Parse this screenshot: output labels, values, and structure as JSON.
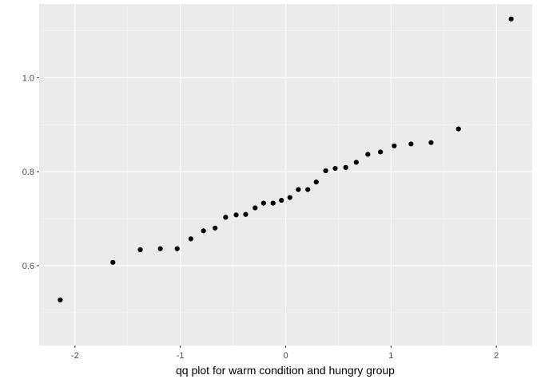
{
  "chart_data": {
    "type": "scatter",
    "title": "",
    "xlabel": "qq plot for warm condition and hungry group",
    "ylabel": "",
    "xlim": [
      -2.34,
      2.34
    ],
    "ylim": [
      0.43,
      1.157
    ],
    "x_ticks": [
      -2,
      -1,
      0,
      1,
      2
    ],
    "x_tick_labels": [
      "-2",
      "-1",
      "0",
      "1",
      "2"
    ],
    "y_ticks": [
      0.6,
      0.8,
      1.0
    ],
    "y_tick_labels": [
      "0.6",
      "0.8",
      "1.0"
    ],
    "grid": true,
    "legend": "none",
    "colors": {
      "panel": "#ebebeb",
      "grid_major": "#ffffff",
      "point": "#000000",
      "tick_text": "#4d4d4d",
      "title_text": "#000000"
    },
    "points": [
      {
        "x": -2.14,
        "y": 0.527
      },
      {
        "x": -1.64,
        "y": 0.607
      },
      {
        "x": -1.38,
        "y": 0.634
      },
      {
        "x": -1.19,
        "y": 0.636
      },
      {
        "x": -1.03,
        "y": 0.636
      },
      {
        "x": -0.9,
        "y": 0.657
      },
      {
        "x": -0.78,
        "y": 0.674
      },
      {
        "x": -0.67,
        "y": 0.68
      },
      {
        "x": -0.57,
        "y": 0.703
      },
      {
        "x": -0.47,
        "y": 0.708
      },
      {
        "x": -0.38,
        "y": 0.709
      },
      {
        "x": -0.29,
        "y": 0.723
      },
      {
        "x": -0.21,
        "y": 0.733
      },
      {
        "x": -0.12,
        "y": 0.733
      },
      {
        "x": -0.04,
        "y": 0.739
      },
      {
        "x": 0.04,
        "y": 0.745
      },
      {
        "x": 0.12,
        "y": 0.762
      },
      {
        "x": 0.21,
        "y": 0.762
      },
      {
        "x": 0.29,
        "y": 0.778
      },
      {
        "x": 0.38,
        "y": 0.802
      },
      {
        "x": 0.47,
        "y": 0.807
      },
      {
        "x": 0.57,
        "y": 0.809
      },
      {
        "x": 0.67,
        "y": 0.82
      },
      {
        "x": 0.78,
        "y": 0.837
      },
      {
        "x": 0.9,
        "y": 0.842
      },
      {
        "x": 1.03,
        "y": 0.855
      },
      {
        "x": 1.19,
        "y": 0.859
      },
      {
        "x": 1.38,
        "y": 0.862
      },
      {
        "x": 1.64,
        "y": 0.891
      },
      {
        "x": 2.14,
        "y": 1.125
      }
    ]
  }
}
